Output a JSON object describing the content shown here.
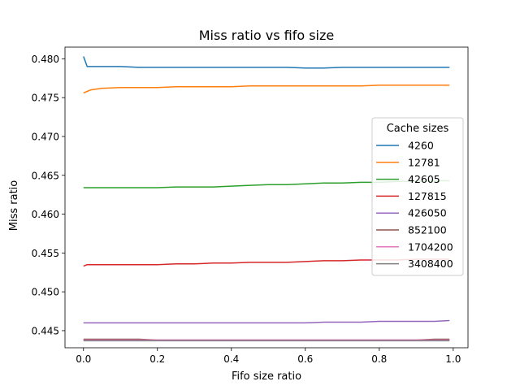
{
  "chart_data": {
    "type": "line",
    "title": "Miss ratio vs fifo size",
    "xlabel": "Fifo size ratio",
    "ylabel": "Miss ratio",
    "xlim": [
      -0.05,
      1.04
    ],
    "ylim": [
      0.4428,
      0.4815
    ],
    "x_ticks": [
      "0.0",
      "0.2",
      "0.4",
      "0.6",
      "0.8",
      "1.0"
    ],
    "y_ticks": [
      "0.445",
      "0.450",
      "0.455",
      "0.460",
      "0.465",
      "0.470",
      "0.475",
      "0.480"
    ],
    "grid": false,
    "legend": {
      "title": "Cache sizes",
      "position": "center-right"
    },
    "x": [
      0.0,
      0.01,
      0.02,
      0.05,
      0.1,
      0.15,
      0.2,
      0.25,
      0.3,
      0.35,
      0.4,
      0.45,
      0.5,
      0.55,
      0.6,
      0.65,
      0.7,
      0.75,
      0.8,
      0.85,
      0.9,
      0.95,
      0.99
    ],
    "series": [
      {
        "name": "4260",
        "color": "#1f77b4",
        "values": [
          0.4803,
          0.479,
          0.479,
          0.479,
          0.479,
          0.4789,
          0.4789,
          0.4789,
          0.4789,
          0.4789,
          0.4789,
          0.4789,
          0.4789,
          0.4789,
          0.4788,
          0.4788,
          0.4789,
          0.4789,
          0.4789,
          0.4789,
          0.4789,
          0.4789,
          0.4789
        ]
      },
      {
        "name": "12781",
        "color": "#ff7f0e",
        "values": [
          0.4756,
          0.4758,
          0.476,
          0.4762,
          0.4763,
          0.4763,
          0.4763,
          0.4764,
          0.4764,
          0.4764,
          0.4764,
          0.4765,
          0.4765,
          0.4765,
          0.4765,
          0.4765,
          0.4765,
          0.4765,
          0.4766,
          0.4766,
          0.4766,
          0.4766,
          0.4766
        ]
      },
      {
        "name": "42605",
        "color": "#2ca02c",
        "values": [
          0.4634,
          0.4634,
          0.4634,
          0.4634,
          0.4634,
          0.4634,
          0.4634,
          0.4635,
          0.4635,
          0.4635,
          0.4636,
          0.4637,
          0.4638,
          0.4638,
          0.4639,
          0.464,
          0.464,
          0.4641,
          0.4641,
          0.4642,
          0.4642,
          0.4643,
          0.4643
        ]
      },
      {
        "name": "127815",
        "color": "#d62728",
        "values": [
          0.4533,
          0.4535,
          0.4535,
          0.4535,
          0.4535,
          0.4535,
          0.4535,
          0.4536,
          0.4536,
          0.4537,
          0.4537,
          0.4538,
          0.4538,
          0.4538,
          0.4539,
          0.454,
          0.454,
          0.4541,
          0.4541,
          0.4541,
          0.4542,
          0.4542,
          0.4542
        ]
      },
      {
        "name": "426050",
        "color": "#9467bd",
        "values": [
          0.446,
          0.446,
          0.446,
          0.446,
          0.446,
          0.446,
          0.446,
          0.446,
          0.446,
          0.446,
          0.446,
          0.446,
          0.446,
          0.446,
          0.446,
          0.4461,
          0.4461,
          0.4461,
          0.4462,
          0.4462,
          0.4462,
          0.4462,
          0.4463
        ]
      },
      {
        "name": "852100",
        "color": "#8c564b",
        "values": [
          0.4439,
          0.4439,
          0.4439,
          0.4439,
          0.4439,
          0.4439,
          0.4438,
          0.4438,
          0.4438,
          0.4438,
          0.4438,
          0.4438,
          0.4438,
          0.4438,
          0.4438,
          0.4438,
          0.4438,
          0.4438,
          0.4438,
          0.4438,
          0.4438,
          0.4439,
          0.4439
        ]
      },
      {
        "name": "1704200",
        "color": "#e377c2",
        "values": [
          0.4438,
          0.4438,
          0.4438,
          0.4438,
          0.4438,
          0.4438,
          0.4438,
          0.4438,
          0.4438,
          0.4438,
          0.4438,
          0.4438,
          0.4438,
          0.4438,
          0.4438,
          0.4438,
          0.4438,
          0.4438,
          0.4438,
          0.4438,
          0.4438,
          0.4438,
          0.4438
        ]
      },
      {
        "name": "3408400",
        "color": "#7f7f7f",
        "values": [
          0.4437,
          0.4437,
          0.4437,
          0.4437,
          0.4437,
          0.4437,
          0.4437,
          0.4437,
          0.4437,
          0.4437,
          0.4437,
          0.4437,
          0.4437,
          0.4437,
          0.4437,
          0.4437,
          0.4437,
          0.4437,
          0.4437,
          0.4437,
          0.4437,
          0.4437,
          0.4437
        ]
      }
    ]
  }
}
